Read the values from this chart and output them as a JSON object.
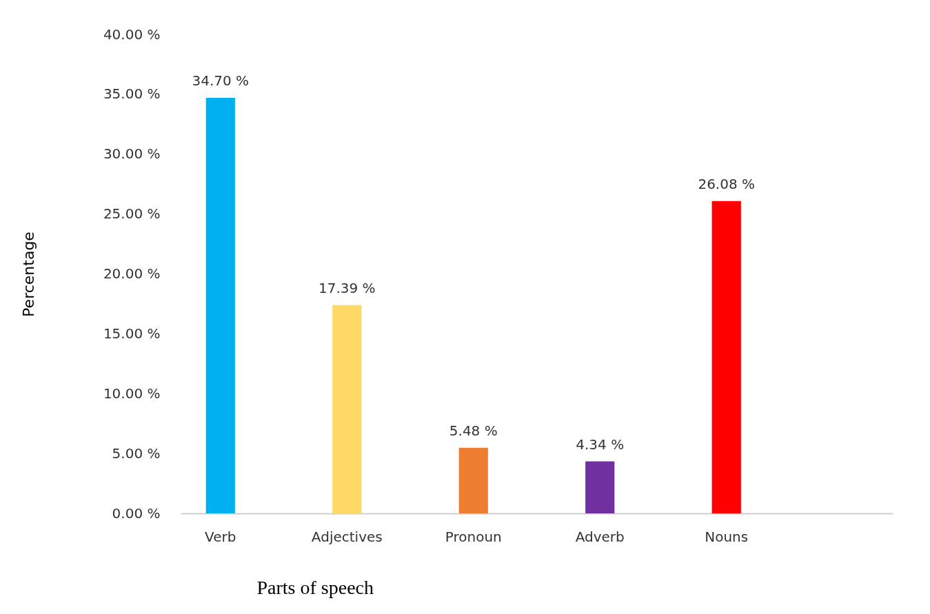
{
  "chart_data": {
    "type": "bar",
    "xlabel": "Parts of speech",
    "ylabel": "Percentage",
    "categories": [
      "Verb",
      "Adjectives",
      "Pronoun",
      "Adverb",
      "Nouns",
      null
    ],
    "values": [
      34.7,
      17.39,
      5.48,
      4.34,
      26.08,
      null
    ],
    "colors": [
      "#00b0f0",
      "#ffd966",
      "#ed7d31",
      "#7030a0",
      "#ff0000",
      "#a5a5a5"
    ],
    "value_labels": [
      "34.70  %",
      "17.39  %",
      "5.48  %",
      "4.34  %",
      "26.08  %",
      null
    ],
    "ylim": [
      0,
      40
    ],
    "yticks": [
      {
        "value": 0,
        "label": "0.00  %"
      },
      {
        "value": 5,
        "label": "5.00  %"
      },
      {
        "value": 10,
        "label": "10.00  %"
      },
      {
        "value": 15,
        "label": "15.00  %"
      },
      {
        "value": 20,
        "label": "20.00  %"
      },
      {
        "value": 25,
        "label": "25.00  %"
      },
      {
        "value": 30,
        "label": "30.00  %"
      },
      {
        "value": 35,
        "label": "35.00  %"
      },
      {
        "value": 40,
        "label": "40.00  %"
      }
    ],
    "grid": false
  }
}
